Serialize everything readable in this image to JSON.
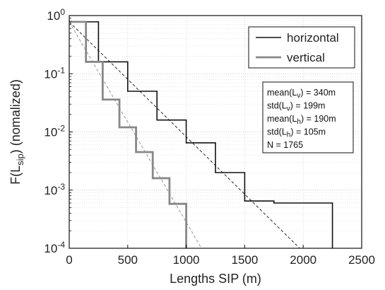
{
  "chart_data": {
    "type": "line",
    "title": "",
    "xlabel": "Lengths SIP (m)",
    "ylabel": "F(L_sip) (nomalized)",
    "xlim": [
      0,
      2500
    ],
    "ylim": [
      0.0001,
      1
    ],
    "yscale": "log",
    "grid": "dotted",
    "x_ticks": [
      0,
      500,
      1000,
      1500,
      2000,
      2500
    ],
    "y_ticks": [
      {
        "value": 1,
        "base": "10",
        "exp": "0"
      },
      {
        "value": 0.1,
        "base": "10",
        "exp": "-1"
      },
      {
        "value": 0.01,
        "base": "10",
        "exp": "-2"
      },
      {
        "value": 0.001,
        "base": "10",
        "exp": "-3"
      },
      {
        "value": 0.0001,
        "base": "10",
        "exp": "-4"
      }
    ],
    "legend_position": "top-right",
    "series": [
      {
        "name": "horizontal",
        "style": "step",
        "color": "#111111",
        "edges": [
          0,
          250,
          500,
          750,
          1000,
          1250,
          1500,
          1750,
          2000,
          2250
        ],
        "values": [
          0.78,
          0.16,
          0.05,
          0.016,
          0.0065,
          0.002,
          0.00065,
          0.0006,
          0.0006
        ]
      },
      {
        "name": "vertical",
        "style": "step",
        "color": "#888888",
        "edges": [
          0,
          143,
          286,
          429,
          571,
          714,
          857,
          1000
        ],
        "values": [
          0.78,
          0.16,
          0.036,
          0.012,
          0.0045,
          0.0016,
          0.00058
        ]
      }
    ],
    "fits": [
      {
        "x": [
          0,
          1970
        ],
        "y": [
          0.78,
          0.0001
        ],
        "color": "#111111",
        "dash": "4,3"
      },
      {
        "x": [
          0,
          1130
        ],
        "y": [
          0.78,
          0.0001
        ],
        "color": "#888888",
        "dash": "4,3"
      }
    ],
    "stats": {
      "mean_v": {
        "pre": "mean(L",
        "sub": "v",
        "post": ") = 340m"
      },
      "std_v": {
        "pre": "std(L",
        "sub": "v",
        "post": ") = 199m"
      },
      "mean_h": {
        "pre": "mean(L",
        "sub": "h",
        "post": ") = 190m"
      },
      "std_h": {
        "pre": "std(L",
        "sub": "h",
        "post": ") = 105m"
      },
      "n": {
        "pre": "N  = 1765",
        "sub": "",
        "post": ""
      }
    }
  }
}
